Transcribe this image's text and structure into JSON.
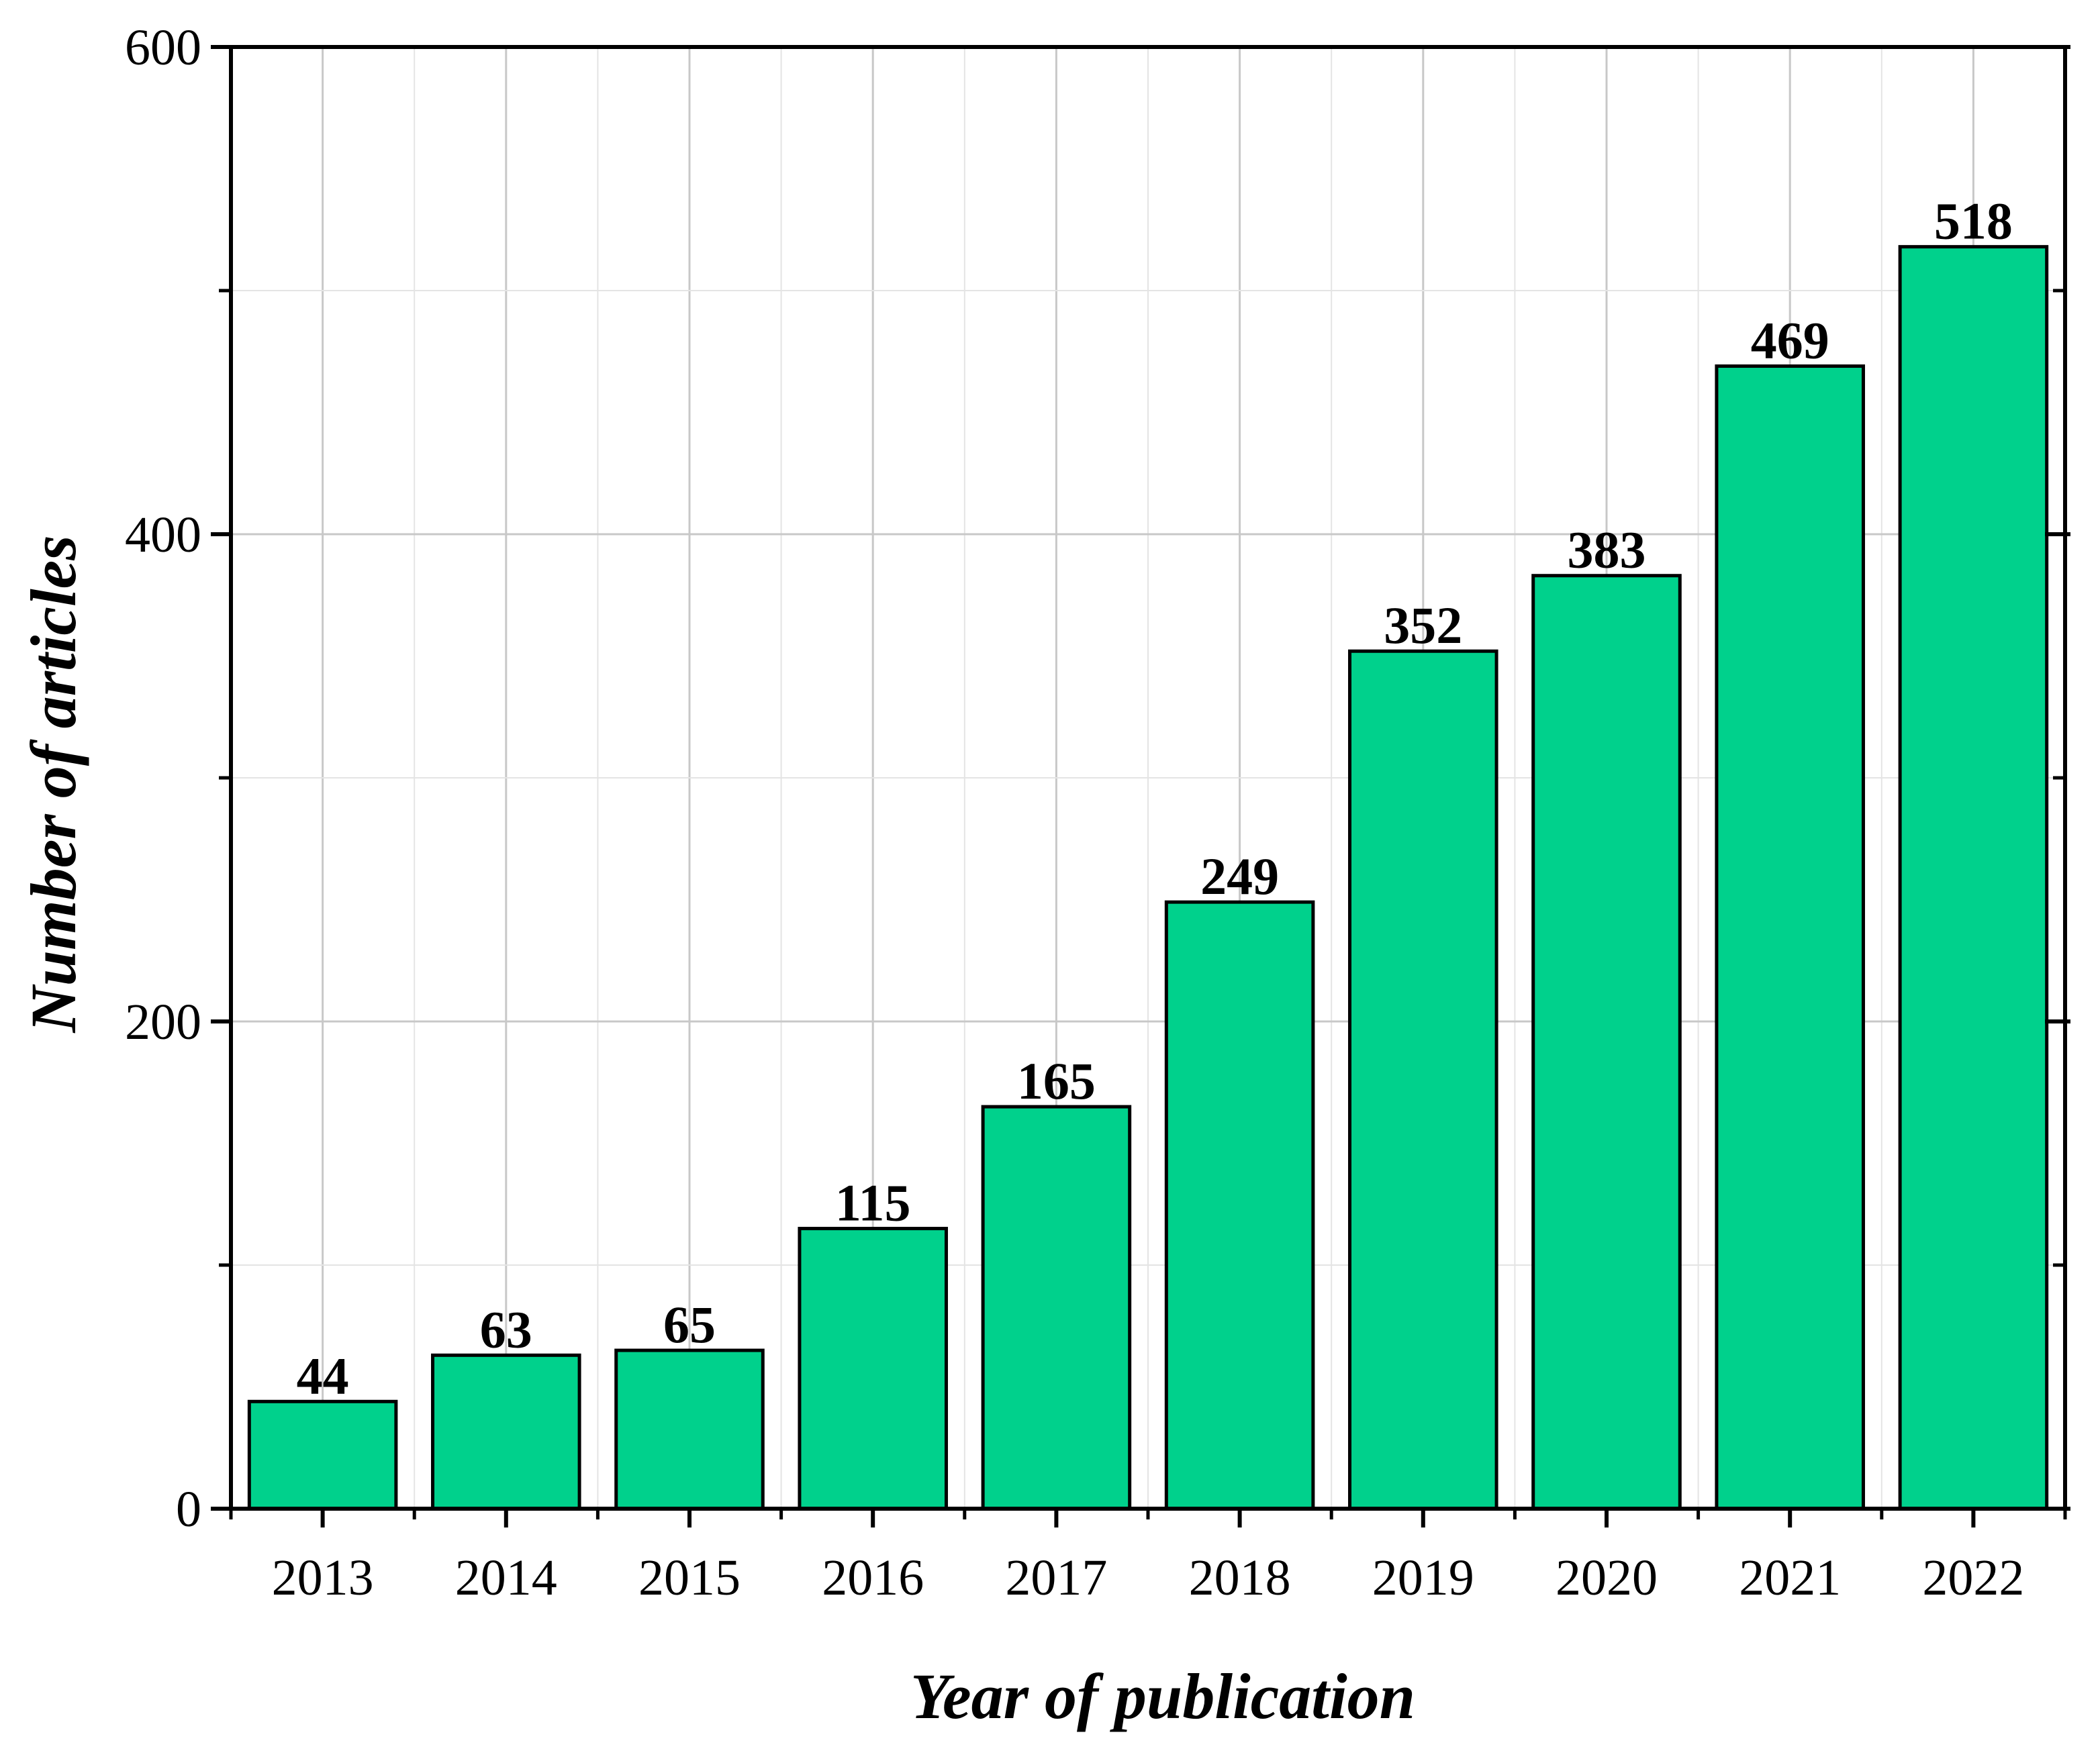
{
  "chart_data": {
    "type": "bar",
    "categories": [
      "2013",
      "2014",
      "2015",
      "2016",
      "2017",
      "2018",
      "2019",
      "2020",
      "2021",
      "2022"
    ],
    "values": [
      44,
      63,
      65,
      115,
      165,
      249,
      352,
      383,
      469,
      518
    ],
    "data_labels": [
      "44",
      "63",
      "65",
      "115",
      "165",
      "249",
      "352",
      "383",
      "469",
      "518"
    ],
    "title": "",
    "xlabel": "Year of publication",
    "ylabel": "Number of articles",
    "ylim": [
      0,
      600
    ],
    "yticks": [
      0,
      200,
      400,
      600
    ],
    "yticks_minor": [
      100,
      300,
      500
    ],
    "grid": true,
    "legend": "none",
    "colors": {
      "bar_fill": "#00D18C",
      "bar_edge": "#000000",
      "grid_major": "#c8c8c8",
      "grid_minor": "#e4e4e4",
      "axis": "#000000"
    }
  }
}
